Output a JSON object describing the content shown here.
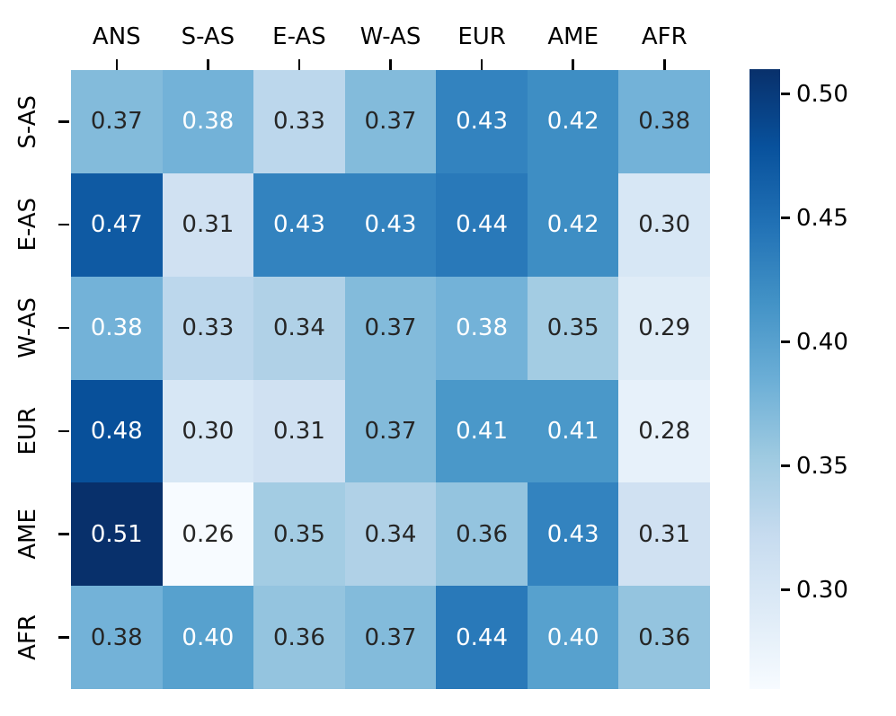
{
  "chart_data": {
    "type": "heatmap",
    "colormap": "Blues",
    "vmin": 0.26,
    "vmax": 0.51,
    "x_labels": [
      "ANS",
      "S-AS",
      "E-AS",
      "W-AS",
      "EUR",
      "AME",
      "AFR"
    ],
    "y_labels": [
      "S-AS",
      "E-AS",
      "W-AS",
      "EUR",
      "AME",
      "AFR"
    ],
    "values": [
      [
        0.37,
        0.38,
        0.33,
        0.37,
        0.43,
        0.42,
        0.38
      ],
      [
        0.47,
        0.31,
        0.43,
        0.43,
        0.44,
        0.42,
        0.3
      ],
      [
        0.38,
        0.33,
        0.34,
        0.37,
        0.38,
        0.35,
        0.29
      ],
      [
        0.48,
        0.3,
        0.31,
        0.37,
        0.41,
        0.41,
        0.28
      ],
      [
        0.51,
        0.26,
        0.35,
        0.34,
        0.36,
        0.43,
        0.31
      ],
      [
        0.38,
        0.4,
        0.36,
        0.37,
        0.44,
        0.4,
        0.36
      ]
    ],
    "annotation_text_colors": [
      [
        "dark",
        "white",
        "dark",
        "dark",
        "white",
        "white",
        "dark"
      ],
      [
        "white",
        "dark",
        "white",
        "white",
        "white",
        "white",
        "dark"
      ],
      [
        "white",
        "dark",
        "dark",
        "dark",
        "white",
        "dark",
        "dark"
      ],
      [
        "white",
        "dark",
        "dark",
        "dark",
        "white",
        "white",
        "dark"
      ],
      [
        "white",
        "dark",
        "dark",
        "dark",
        "dark",
        "white",
        "dark"
      ],
      [
        "dark",
        "white",
        "dark",
        "dark",
        "white",
        "white",
        "dark"
      ]
    ],
    "colorbar": {
      "position": "right",
      "tick_labels": [
        "0.50",
        "0.45",
        "0.40",
        "0.35",
        "0.30"
      ],
      "tick_values": [
        0.5,
        0.45,
        0.4,
        0.35,
        0.3
      ],
      "top_value": 0.51,
      "bottom_value": 0.26
    },
    "colors": {
      "annotation_dark": "#262626",
      "annotation_light": "#ffffff",
      "axis_text": "#000000",
      "background": "#ffffff",
      "blues_scale": [
        "#f7fbff",
        "#deebf7",
        "#c6dbef",
        "#9ecae1",
        "#6baed6",
        "#4292c6",
        "#2171b5",
        "#08519c",
        "#08306b"
      ]
    },
    "title": "",
    "xlabel": "",
    "ylabel": "",
    "grid": "off"
  }
}
